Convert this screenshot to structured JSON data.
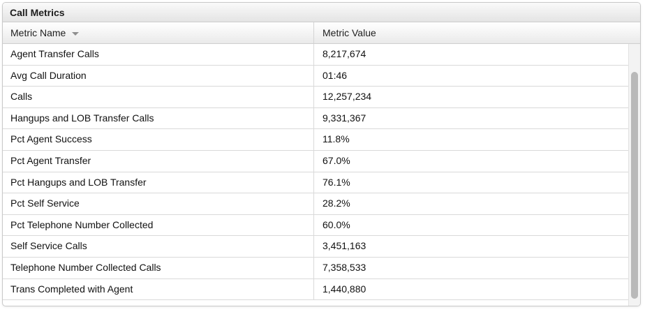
{
  "panel": {
    "title": "Call Metrics"
  },
  "columns": {
    "name_header": "Metric Name",
    "value_header": "Metric Value",
    "sort_icon": "sort-descending-triangle"
  },
  "rows": [
    {
      "name": "Agent Transfer Calls",
      "value": "8,217,674"
    },
    {
      "name": "Avg Call Duration",
      "value": "01:46"
    },
    {
      "name": "Calls",
      "value": "12,257,234"
    },
    {
      "name": "Hangups and LOB Transfer Calls",
      "value": "9,331,367"
    },
    {
      "name": "Pct Agent Success",
      "value": "11.8%"
    },
    {
      "name": "Pct Agent Transfer",
      "value": "67.0%"
    },
    {
      "name": "Pct Hangups and LOB Transfer",
      "value": "76.1%"
    },
    {
      "name": "Pct Self Service",
      "value": "28.2%"
    },
    {
      "name": "Pct Telephone Number Collected",
      "value": "60.0%"
    },
    {
      "name": "Self Service Calls",
      "value": "3,451,163"
    },
    {
      "name": "Telephone Number Collected Calls",
      "value": "7,358,533"
    },
    {
      "name": "Trans Completed with Agent",
      "value": "1,440,880"
    }
  ],
  "colors": {
    "header_text": "#1c1c1c",
    "grid_border": "#d9d9d9",
    "scroll_thumb": "#b9b9b9"
  }
}
